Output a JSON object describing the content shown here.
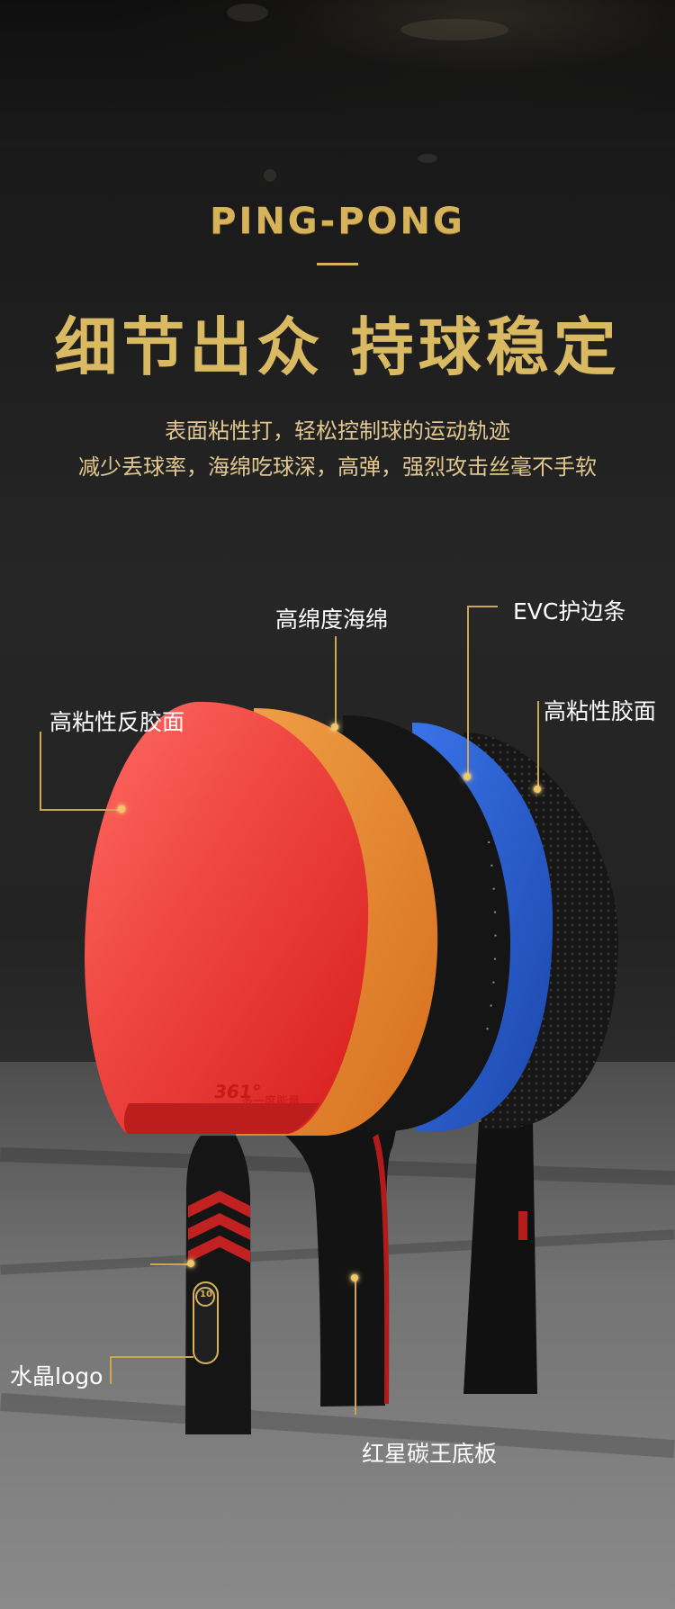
{
  "header": {
    "title_en": "PING-PONG",
    "title_zh": "细节出众 持球稳定",
    "desc_line1": "表面粘性打，轻松控制球的运动轨迹",
    "desc_line2": "减少丢球率，海绵吃球深，高弹，强烈攻击丝毫不手软"
  },
  "callouts": {
    "rubber_back": "高粘性反胶面",
    "sponge": "高绵度海绵",
    "evc_edge": "EVC护边条",
    "rubber_front": "高粘性胶面",
    "crystal_logo": "水晶logo",
    "blade": "红星碳王底板"
  },
  "paddle_marks": {
    "brand": "361°",
    "slogan": "多一度能量",
    "grade": "10"
  },
  "colors": {
    "gold": "#d6b35b",
    "red_rubber": "#e32020",
    "orange_sponge": "#e7872a",
    "blue_edge": "#1f57c7",
    "black_blade": "#151515"
  }
}
